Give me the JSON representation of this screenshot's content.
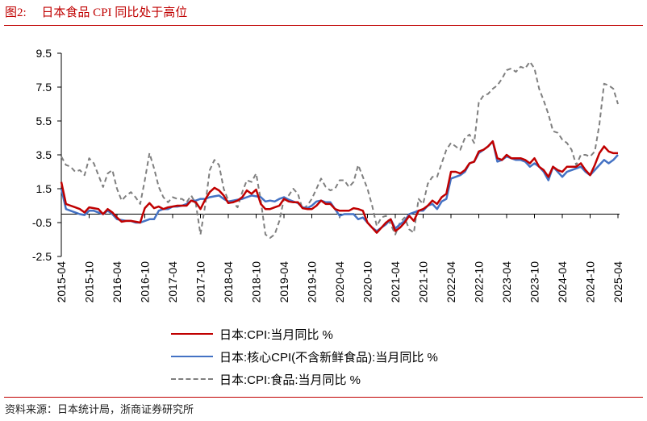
{
  "header": {
    "title": "图2:     日本食品 CPI 同比处于高位"
  },
  "footer": {
    "source": "资料来源：日本统计局，浙商证券研究所"
  },
  "chart_data": {
    "type": "line",
    "title": "",
    "xlabel": "",
    "ylabel": "",
    "ylim": [
      -2.5,
      9.5
    ],
    "y_ticks": [
      -2.5,
      -0.5,
      1.5,
      3.5,
      5.5,
      7.5,
      9.5
    ],
    "y_tick_labels": [
      "-2.5",
      "-0.5",
      "1.5",
      "3.5",
      "5.5",
      "7.5",
      "9.5"
    ],
    "x_axis_crosses_at": 0,
    "x_frequency": "monthly",
    "x_tick_labels": [
      "2015-04",
      "2015-10",
      "2016-04",
      "2016-10",
      "2017-04",
      "2017-10",
      "2018-04",
      "2018-10",
      "2019-04",
      "2019-10",
      "2020-04",
      "2020-10",
      "2021-04",
      "2021-10",
      "2022-04",
      "2022-10",
      "2023-04",
      "2023-10",
      "2024-04",
      "2024-10",
      "2025-04"
    ],
    "grid": false,
    "legend_placement": "bottom",
    "series": [
      {
        "name": "日本:CPI:当月同比 %",
        "color": "#C00000",
        "style": "solid",
        "values": [
          1.9,
          0.6,
          0.5,
          0.4,
          0.3,
          0.1,
          0.4,
          0.35,
          0.3,
          0.0,
          0.3,
          0.1,
          -0.2,
          -0.45,
          -0.4,
          -0.4,
          -0.45,
          -0.5,
          0.35,
          0.65,
          0.35,
          0.45,
          0.3,
          0.4,
          0.45,
          0.5,
          0.5,
          0.5,
          0.8,
          0.7,
          0.3,
          0.85,
          1.3,
          1.55,
          1.4,
          1.1,
          0.65,
          0.7,
          0.8,
          1.0,
          1.4,
          1.2,
          1.45,
          0.6,
          0.3,
          0.3,
          0.4,
          0.5,
          0.9,
          0.75,
          0.7,
          0.7,
          0.35,
          0.3,
          0.3,
          0.5,
          0.8,
          0.6,
          0.6,
          0.3,
          0.2,
          0.2,
          0.2,
          0.35,
          0.3,
          0.2,
          -0.5,
          -0.8,
          -1.1,
          -0.8,
          -0.5,
          -0.3,
          -1.0,
          -0.8,
          -0.5,
          -0.1,
          -0.4,
          0.2,
          0.3,
          0.5,
          0.8,
          0.6,
          1.0,
          1.2,
          2.5,
          2.5,
          2.4,
          2.6,
          3.0,
          3.1,
          3.7,
          3.8,
          4.0,
          4.3,
          3.3,
          3.2,
          3.5,
          3.3,
          3.3,
          3.3,
          3.2,
          3.0,
          3.3,
          2.8,
          2.6,
          2.2,
          2.8,
          2.6,
          2.5,
          2.8,
          2.8,
          2.8,
          3.0,
          2.6,
          2.3,
          2.9,
          3.6,
          4.0,
          3.7,
          3.6,
          3.6
        ]
      },
      {
        "name": "日本:核心CPI(不含新鲜食品):当月同比 %",
        "color": "#4472C4",
        "style": "solid",
        "values": [
          1.5,
          0.3,
          0.2,
          0.1,
          0.0,
          -0.05,
          0.2,
          0.2,
          0.1,
          0.0,
          0.2,
          0.0,
          -0.3,
          -0.35,
          -0.4,
          -0.4,
          -0.5,
          -0.5,
          -0.4,
          -0.3,
          -0.3,
          0.2,
          0.3,
          0.3,
          0.45,
          0.45,
          0.5,
          0.6,
          0.8,
          0.8,
          0.9,
          0.9,
          1.0,
          1.05,
          1.1,
          0.9,
          0.75,
          0.8,
          0.85,
          0.9,
          1.0,
          1.1,
          1.05,
          1.0,
          0.75,
          0.8,
          0.75,
          0.9,
          1.0,
          0.85,
          0.75,
          0.65,
          0.4,
          0.35,
          0.5,
          0.75,
          0.8,
          0.7,
          0.7,
          0.3,
          -0.1,
          0.0,
          0.0,
          0.0,
          -0.3,
          -0.2,
          -0.5,
          -0.8,
          -1.0,
          -0.8,
          -0.6,
          -0.3,
          -0.85,
          -0.6,
          -0.4,
          0.0,
          0.1,
          0.2,
          0.2,
          0.5,
          0.6,
          0.3,
          0.75,
          0.9,
          2.1,
          2.2,
          2.3,
          2.5,
          3.0,
          3.1,
          3.6,
          3.8,
          4.0,
          4.3,
          3.1,
          3.2,
          3.4,
          3.3,
          3.2,
          3.2,
          3.1,
          2.8,
          3.0,
          2.8,
          2.5,
          2.0,
          2.8,
          2.5,
          2.2,
          2.5,
          2.6,
          2.7,
          2.8,
          2.5,
          2.3,
          2.6,
          2.9,
          3.2,
          3.0,
          3.2,
          3.5
        ]
      },
      {
        "name": "日本:CPI:食品:当月同比 %",
        "color": "#7F7F7F",
        "style": "dashed",
        "values": [
          3.4,
          2.9,
          2.8,
          2.5,
          2.6,
          2.3,
          3.3,
          3.0,
          2.3,
          1.6,
          2.4,
          2.6,
          1.5,
          0.8,
          1.1,
          1.3,
          1.0,
          0.6,
          2.0,
          3.6,
          2.7,
          1.6,
          1.0,
          0.7,
          1.0,
          0.9,
          0.9,
          0.7,
          1.1,
          0.6,
          -1.2,
          0.5,
          2.6,
          3.2,
          2.9,
          1.5,
          0.8,
          0.7,
          0.4,
          1.3,
          2.0,
          1.9,
          2.4,
          0.8,
          -1.2,
          -1.4,
          -1.2,
          -0.4,
          0.9,
          1.1,
          1.5,
          1.2,
          0.3,
          0.5,
          0.9,
          1.5,
          2.1,
          1.6,
          1.4,
          1.5,
          2.0,
          2.0,
          1.6,
          1.9,
          2.9,
          2.2,
          1.5,
          0.5,
          -0.7,
          -0.2,
          -0.1,
          -0.6,
          -1.2,
          -0.5,
          -0.2,
          -0.9,
          -1.1,
          0.9,
          0.6,
          1.8,
          2.2,
          2.2,
          3.0,
          3.8,
          4.2,
          4.0,
          3.8,
          4.5,
          4.7,
          4.2,
          6.6,
          7.0,
          7.1,
          7.4,
          7.6,
          8.0,
          8.5,
          8.6,
          8.4,
          8.7,
          8.6,
          9.0,
          8.6,
          7.4,
          6.7,
          5.9,
          4.9,
          4.8,
          4.4,
          4.2,
          3.8,
          2.9,
          3.5,
          3.5,
          3.4,
          3.7,
          5.3,
          7.7,
          7.6,
          7.4,
          6.5
        ]
      }
    ]
  }
}
